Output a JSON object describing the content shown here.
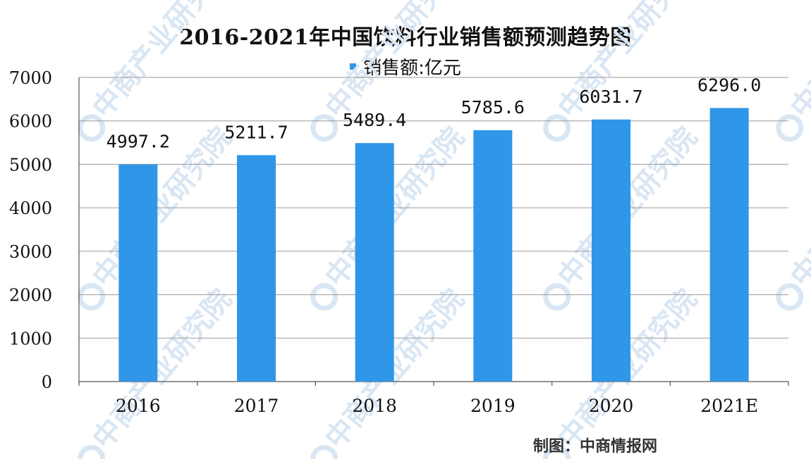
{
  "chart_data": {
    "type": "bar",
    "title": "2016-2021年中国饮料行业销售额预测趋势图",
    "categories": [
      "2016",
      "2017",
      "2018",
      "2019",
      "2020",
      "2021E"
    ],
    "series": [
      {
        "name": "销售额:亿元",
        "values": [
          4997.2,
          5211.7,
          5489.4,
          5785.6,
          6031.7,
          6296.0
        ],
        "labels": [
          "4997.2",
          "5211.7",
          "5489.4",
          "5785.6",
          "6031.7",
          "6296.0"
        ]
      }
    ],
    "ylim": [
      0,
      7000
    ],
    "yticks": [
      "0",
      "1000",
      "2000",
      "3000",
      "4000",
      "5000",
      "6000",
      "7000"
    ],
    "xlabel": "",
    "ylabel": "",
    "grid": true,
    "legend_position": "top",
    "bar_color": "#2F96E8"
  },
  "source_text": "制图：中商情报网",
  "watermark_text": "中商产业研究院"
}
